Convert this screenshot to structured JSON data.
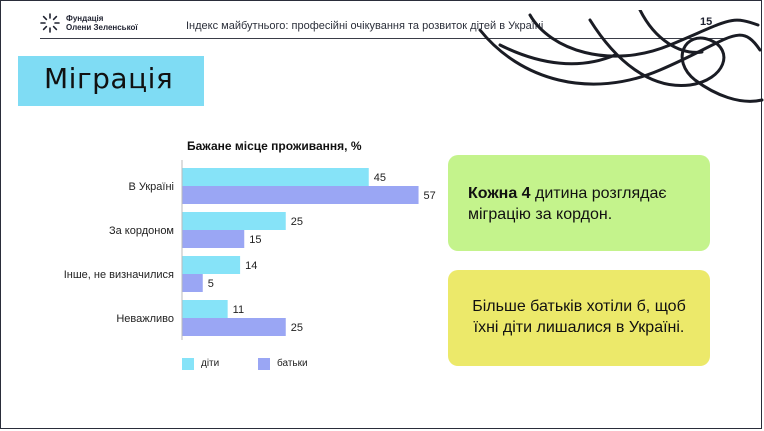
{
  "header": {
    "logo_line1": "Фундація",
    "logo_line2": "Олени Зеленської",
    "title": "Індекс майбутнього: професійні очікування та розвиток дітей в Україні",
    "page_number": "15"
  },
  "section": {
    "title": "Міграція"
  },
  "chart_data": {
    "type": "bar",
    "orientation": "horizontal",
    "title": "Бажане місце проживання, %",
    "categories": [
      "В Україні",
      "За кордоном",
      "Інше, не визначилися",
      "Неважливо"
    ],
    "series": [
      {
        "name": "діти",
        "values": [
          45,
          25,
          14,
          11
        ],
        "color": "#86e3f8"
      },
      {
        "name": "батьки",
        "values": [
          57,
          15,
          5,
          25
        ],
        "color": "#9aa6f4"
      }
    ],
    "legend_position": "bottom-left",
    "grid": false
  },
  "callouts": {
    "first_bold": "Кожна 4",
    "first_rest_line1": " дитина розглядає",
    "first_line2": "міграцію за кордон.",
    "second_line1": "Більше батьків хотіли б, щоб",
    "second_line2": "їхні діти лишалися в Україні."
  },
  "colors": {
    "section_box": "#7fdcf4",
    "callout_green": "#c4f38c",
    "callout_yellow": "#ece96a"
  }
}
